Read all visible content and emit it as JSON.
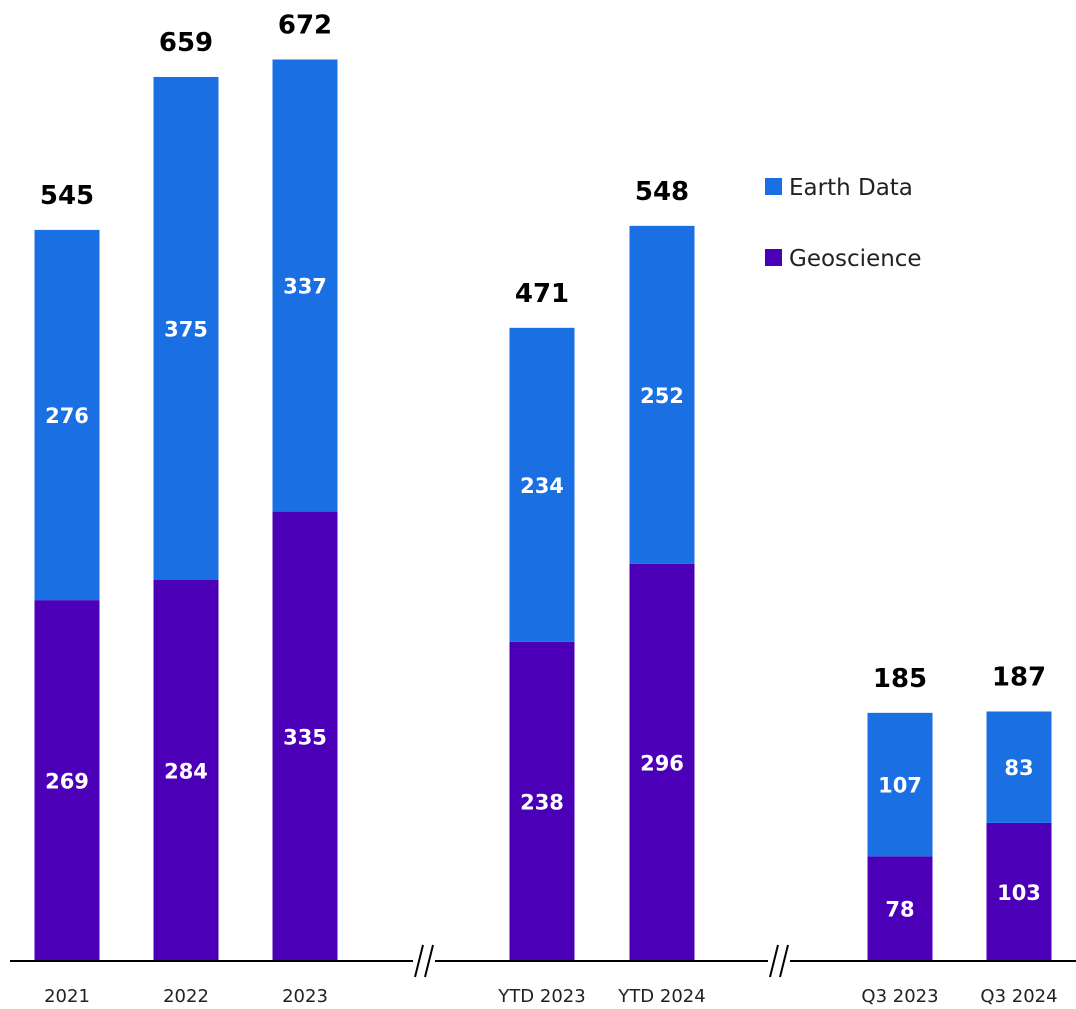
{
  "chart_data": {
    "type": "bar",
    "stacked": true,
    "categories": [
      "2021",
      "2022",
      "2023",
      "YTD 2023",
      "YTD 2024",
      "Q3 2023",
      "Q3 2024"
    ],
    "groups": [
      [
        0,
        1,
        2
      ],
      [
        3,
        4
      ],
      [
        5,
        6
      ]
    ],
    "axis_break_marker": "//",
    "series": [
      {
        "name": "Geoscience",
        "color": "#4B00B8",
        "values": [
          269,
          284,
          335,
          238,
          296,
          78,
          103
        ]
      },
      {
        "name": "Earth Data",
        "color": "#1A6FE3",
        "values": [
          276,
          375,
          337,
          234,
          252,
          107,
          83
        ]
      }
    ],
    "totals": [
      545,
      659,
      672,
      471,
      548,
      185,
      187
    ],
    "legend": {
      "position": "top-right",
      "order": [
        "Earth Data",
        "Geoscience"
      ]
    },
    "grid": false,
    "ylim": [
      0,
      720
    ]
  }
}
